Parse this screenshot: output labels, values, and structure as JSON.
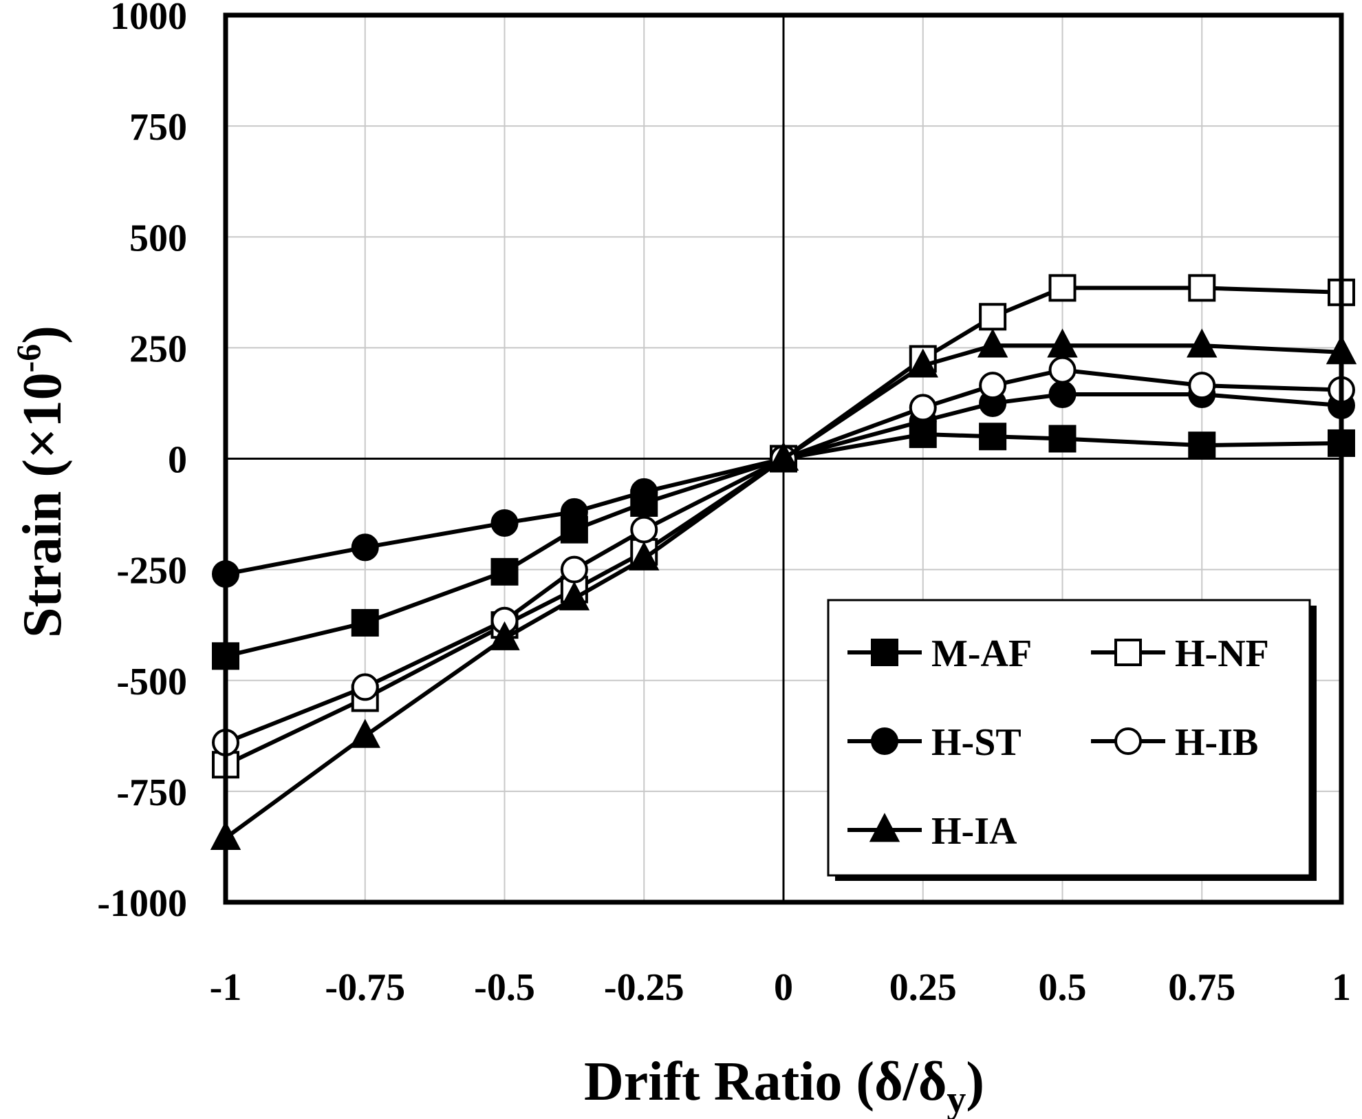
{
  "chart_data": {
    "type": "line",
    "title": "",
    "xlabel": "Drift Ratio (δ/δ",
    "xlabel_sub": "y",
    "xlabel_end": ")",
    "ylabel": "Strain (×10",
    "ylabel_sup": "-6",
    "ylabel_end": ")",
    "xlim": [
      -1,
      1
    ],
    "ylim": [
      -1000,
      1000
    ],
    "x_ticks": [
      -1,
      -0.75,
      -0.5,
      -0.25,
      0,
      0.25,
      0.5,
      0.75,
      1
    ],
    "x_tick_labels": [
      "-1",
      "-0.75",
      "-0.5",
      "-0.25",
      "0",
      "0.25",
      "0.5",
      "0.75",
      "1"
    ],
    "y_ticks": [
      -1000,
      -750,
      -500,
      -250,
      0,
      250,
      500,
      750,
      1000
    ],
    "y_tick_labels": [
      "-1000",
      "-750",
      "-500",
      "-250",
      "0",
      "250",
      "500",
      "750",
      "1000"
    ],
    "grid": true,
    "legend_position": "bottom-right",
    "x": [
      -1,
      -0.75,
      -0.5,
      -0.375,
      -0.25,
      0,
      0.25,
      0.375,
      0.5,
      0.75,
      1
    ],
    "series": [
      {
        "name": "M-AF",
        "marker": "square-filled",
        "values": [
          -445,
          -370,
          -255,
          -160,
          -100,
          0,
          55,
          50,
          45,
          30,
          35
        ]
      },
      {
        "name": "H-NF",
        "marker": "square-open",
        "values": [
          -690,
          -540,
          -375,
          -295,
          -210,
          0,
          225,
          320,
          385,
          385,
          375
        ]
      },
      {
        "name": "H-ST",
        "marker": "circle-filled",
        "values": [
          -260,
          -200,
          -145,
          -120,
          -75,
          0,
          85,
          125,
          145,
          145,
          120
        ]
      },
      {
        "name": "H-IB",
        "marker": "circle-open",
        "values": [
          -640,
          -515,
          -365,
          -250,
          -160,
          0,
          115,
          165,
          200,
          165,
          155
        ]
      },
      {
        "name": "H-IA",
        "marker": "triangle-filled",
        "values": [
          -855,
          -625,
          -405,
          -315,
          -225,
          0,
          210,
          255,
          255,
          255,
          240
        ]
      }
    ]
  }
}
